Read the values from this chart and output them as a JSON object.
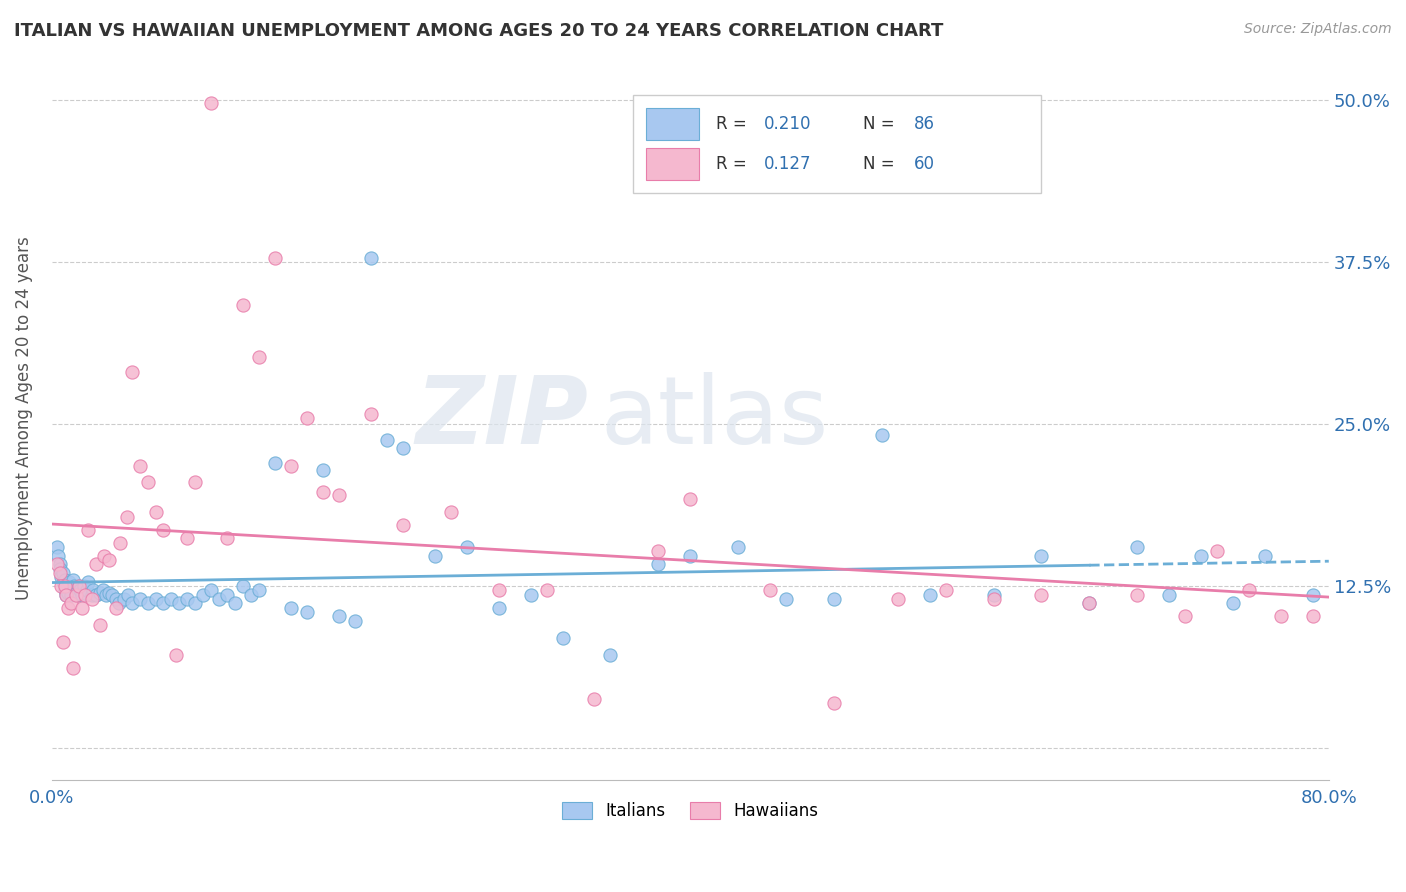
{
  "title": "ITALIAN VS HAWAIIAN UNEMPLOYMENT AMONG AGES 20 TO 24 YEARS CORRELATION CHART",
  "source": "Source: ZipAtlas.com",
  "ylabel": "Unemployment Among Ages 20 to 24 years",
  "xlim": [
    0.0,
    0.8
  ],
  "ylim": [
    -0.025,
    0.535
  ],
  "ytick_positions": [
    0.0,
    0.125,
    0.25,
    0.375,
    0.5
  ],
  "ytick_labels": [
    "",
    "12.5%",
    "25.0%",
    "37.5%",
    "50.0%"
  ],
  "xtick_positions": [
    0.0,
    0.2,
    0.4,
    0.6,
    0.8
  ],
  "xtick_labels": [
    "0.0%",
    "",
    "",
    "",
    "80.0%"
  ],
  "italian_color": "#a8c8f0",
  "hawaiian_color": "#f5b8cf",
  "italian_edge_color": "#6baed6",
  "hawaiian_edge_color": "#e87daa",
  "trend_italian_color": "#6baed6",
  "trend_hawaiian_color": "#e87daa",
  "italian_R": 0.21,
  "italian_N": 86,
  "hawaiian_R": 0.127,
  "hawaiian_N": 60,
  "watermark_zip": "ZIP",
  "watermark_atlas": "atlas",
  "legend_italian": "Italians",
  "legend_hawaiian": "Hawaiians",
  "italian_x": [
    0.003,
    0.004,
    0.005,
    0.005,
    0.006,
    0.007,
    0.007,
    0.008,
    0.008,
    0.009,
    0.01,
    0.01,
    0.011,
    0.012,
    0.012,
    0.013,
    0.014,
    0.015,
    0.016,
    0.017,
    0.018,
    0.019,
    0.02,
    0.021,
    0.022,
    0.023,
    0.025,
    0.026,
    0.028,
    0.03,
    0.032,
    0.034,
    0.036,
    0.038,
    0.04,
    0.042,
    0.045,
    0.048,
    0.05,
    0.055,
    0.06,
    0.065,
    0.07,
    0.075,
    0.08,
    0.085,
    0.09,
    0.095,
    0.1,
    0.105,
    0.11,
    0.115,
    0.12,
    0.125,
    0.13,
    0.14,
    0.15,
    0.16,
    0.17,
    0.18,
    0.19,
    0.2,
    0.21,
    0.22,
    0.24,
    0.26,
    0.28,
    0.3,
    0.32,
    0.35,
    0.38,
    0.4,
    0.43,
    0.46,
    0.49,
    0.52,
    0.55,
    0.59,
    0.62,
    0.65,
    0.68,
    0.7,
    0.72,
    0.74,
    0.76,
    0.79
  ],
  "italian_y": [
    0.155,
    0.148,
    0.142,
    0.138,
    0.132,
    0.128,
    0.135,
    0.122,
    0.13,
    0.118,
    0.125,
    0.12,
    0.128,
    0.122,
    0.118,
    0.13,
    0.125,
    0.12,
    0.118,
    0.125,
    0.122,
    0.118,
    0.125,
    0.12,
    0.122,
    0.128,
    0.118,
    0.122,
    0.118,
    0.12,
    0.122,
    0.118,
    0.12,
    0.118,
    0.115,
    0.112,
    0.115,
    0.118,
    0.112,
    0.115,
    0.112,
    0.115,
    0.112,
    0.115,
    0.112,
    0.115,
    0.112,
    0.118,
    0.122,
    0.115,
    0.118,
    0.112,
    0.125,
    0.118,
    0.122,
    0.22,
    0.108,
    0.105,
    0.215,
    0.102,
    0.098,
    0.378,
    0.238,
    0.232,
    0.148,
    0.155,
    0.108,
    0.118,
    0.085,
    0.072,
    0.142,
    0.148,
    0.155,
    0.115,
    0.115,
    0.242,
    0.118,
    0.118,
    0.148,
    0.112,
    0.155,
    0.118,
    0.148,
    0.112,
    0.148,
    0.118
  ],
  "hawaiian_x": [
    0.003,
    0.005,
    0.006,
    0.007,
    0.008,
    0.009,
    0.01,
    0.012,
    0.013,
    0.015,
    0.017,
    0.019,
    0.021,
    0.023,
    0.025,
    0.028,
    0.03,
    0.033,
    0.036,
    0.04,
    0.043,
    0.047,
    0.05,
    0.055,
    0.06,
    0.065,
    0.07,
    0.078,
    0.085,
    0.09,
    0.1,
    0.11,
    0.12,
    0.13,
    0.14,
    0.15,
    0.16,
    0.17,
    0.18,
    0.2,
    0.22,
    0.25,
    0.28,
    0.31,
    0.34,
    0.38,
    0.4,
    0.45,
    0.49,
    0.53,
    0.56,
    0.59,
    0.62,
    0.65,
    0.68,
    0.71,
    0.73,
    0.75,
    0.77,
    0.79
  ],
  "hawaiian_y": [
    0.142,
    0.135,
    0.125,
    0.082,
    0.125,
    0.118,
    0.108,
    0.112,
    0.062,
    0.118,
    0.125,
    0.108,
    0.118,
    0.168,
    0.115,
    0.142,
    0.095,
    0.148,
    0.145,
    0.108,
    0.158,
    0.178,
    0.29,
    0.218,
    0.205,
    0.182,
    0.168,
    0.072,
    0.162,
    0.205,
    0.498,
    0.162,
    0.342,
    0.302,
    0.378,
    0.218,
    0.255,
    0.198,
    0.195,
    0.258,
    0.172,
    0.182,
    0.122,
    0.122,
    0.038,
    0.152,
    0.192,
    0.122,
    0.035,
    0.115,
    0.122,
    0.115,
    0.118,
    0.112,
    0.118,
    0.102,
    0.152,
    0.122,
    0.102,
    0.102
  ]
}
